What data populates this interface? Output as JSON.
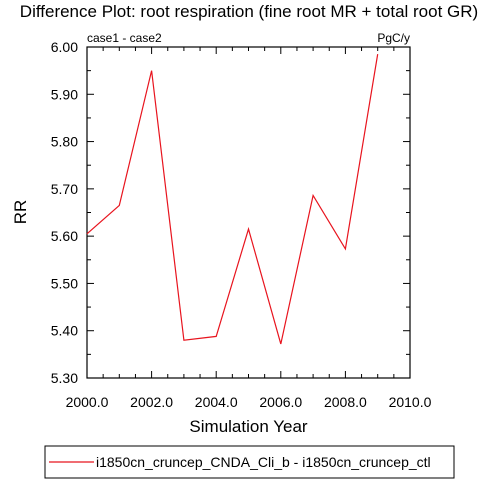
{
  "chart_data": {
    "type": "line",
    "title": "Difference Plot: root respiration (fine root MR + total root GR)",
    "left_string": "case1 - case2",
    "right_string": "PgC/y",
    "xlabel": "Simulation Year",
    "ylabel": "RR",
    "xlim": [
      2000,
      2010
    ],
    "ylim": [
      5.3,
      6.0
    ],
    "x_ticks": [
      2000,
      2002,
      2004,
      2006,
      2008,
      2010
    ],
    "x_tick_labels": [
      "2000.0",
      "2002.0",
      "2004.0",
      "2006.0",
      "2008.0",
      "2010.0"
    ],
    "y_ticks": [
      5.3,
      5.4,
      5.5,
      5.6,
      5.7,
      5.8,
      5.9,
      6.0
    ],
    "y_tick_labels": [
      "5.30",
      "5.40",
      "5.50",
      "5.60",
      "5.70",
      "5.80",
      "5.90",
      "6.00"
    ],
    "grid": false,
    "legend_position": "bottom",
    "series": [
      {
        "name": "i1850cn_cruncep_CNDA_Cli_b - i1850cn_cruncep_ctl",
        "color": "#e8141e",
        "x": [
          2000,
          2001,
          2002,
          2003,
          2004,
          2005,
          2006,
          2007,
          2008,
          2009
        ],
        "y": [
          5.605,
          5.665,
          5.95,
          5.38,
          5.388,
          5.615,
          5.372,
          5.686,
          5.573,
          5.985
        ]
      }
    ]
  }
}
